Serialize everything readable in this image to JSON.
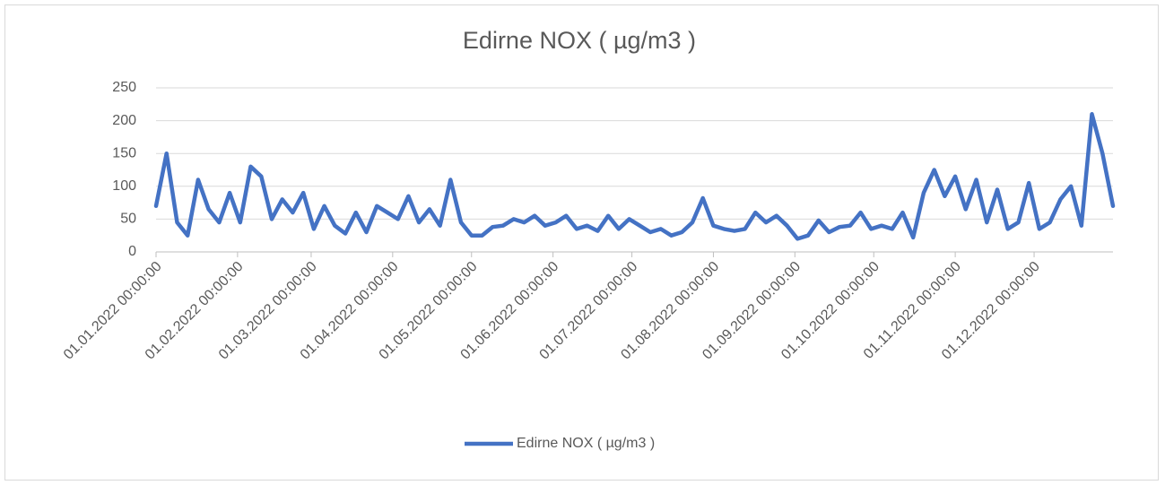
{
  "chart_data": {
    "type": "line",
    "title": "Edirne NOX ( µg/m3 )",
    "x": [
      "2022-01-01",
      "2022-01-05",
      "2022-01-09",
      "2022-01-13",
      "2022-01-17",
      "2022-01-21",
      "2022-01-25",
      "2022-01-29",
      "2022-02-02",
      "2022-02-06",
      "2022-02-10",
      "2022-02-14",
      "2022-02-18",
      "2022-02-22",
      "2022-02-26",
      "2022-03-02",
      "2022-03-06",
      "2022-03-10",
      "2022-03-14",
      "2022-03-18",
      "2022-03-22",
      "2022-03-26",
      "2022-03-30",
      "2022-04-03",
      "2022-04-07",
      "2022-04-11",
      "2022-04-15",
      "2022-04-19",
      "2022-04-23",
      "2022-04-27",
      "2022-05-01",
      "2022-05-05",
      "2022-05-09",
      "2022-05-13",
      "2022-05-17",
      "2022-05-21",
      "2022-05-25",
      "2022-05-29",
      "2022-06-02",
      "2022-06-06",
      "2022-06-10",
      "2022-06-14",
      "2022-06-18",
      "2022-06-22",
      "2022-06-26",
      "2022-06-30",
      "2022-07-04",
      "2022-07-08",
      "2022-07-12",
      "2022-07-16",
      "2022-07-20",
      "2022-07-24",
      "2022-07-28",
      "2022-08-01",
      "2022-08-05",
      "2022-08-09",
      "2022-08-13",
      "2022-08-17",
      "2022-08-21",
      "2022-08-25",
      "2022-08-29",
      "2022-09-02",
      "2022-09-06",
      "2022-09-10",
      "2022-09-14",
      "2022-09-18",
      "2022-09-22",
      "2022-09-26",
      "2022-09-30",
      "2022-10-04",
      "2022-10-08",
      "2022-10-12",
      "2022-10-16",
      "2022-10-20",
      "2022-10-24",
      "2022-10-28",
      "2022-11-01",
      "2022-11-05",
      "2022-11-09",
      "2022-11-13",
      "2022-11-17",
      "2022-11-21",
      "2022-11-25",
      "2022-11-29",
      "2022-12-03",
      "2022-12-07",
      "2022-12-11",
      "2022-12-15",
      "2022-12-19",
      "2022-12-23",
      "2022-12-27",
      "2022-12-31"
    ],
    "series": [
      {
        "name": "Edirne NOX ( µg/m3 )",
        "color": "#4472c4",
        "values": [
          70,
          150,
          45,
          25,
          110,
          65,
          45,
          90,
          45,
          130,
          115,
          50,
          80,
          60,
          90,
          35,
          70,
          40,
          28,
          60,
          30,
          70,
          60,
          50,
          85,
          45,
          65,
          40,
          110,
          45,
          25,
          25,
          38,
          40,
          50,
          45,
          55,
          40,
          45,
          55,
          35,
          40,
          32,
          55,
          35,
          50,
          40,
          30,
          35,
          25,
          30,
          45,
          82,
          40,
          35,
          32,
          35,
          60,
          45,
          55,
          40,
          20,
          25,
          48,
          30,
          38,
          40,
          60,
          35,
          40,
          35,
          60,
          22,
          90,
          125,
          85,
          115,
          65,
          110,
          45,
          95,
          35,
          45,
          105,
          35,
          45,
          80,
          100,
          40,
          210,
          150,
          70
        ]
      }
    ],
    "xlim": [
      "2022-01-01",
      "2022-12-31"
    ],
    "xticks": [
      {
        "value": "2022-01-01",
        "label": "01.01.2022 00:00:00"
      },
      {
        "value": "2022-02-01",
        "label": "01.02.2022 00:00:00"
      },
      {
        "value": "2022-03-01",
        "label": "01.03.2022 00:00:00"
      },
      {
        "value": "2022-04-01",
        "label": "01.04.2022 00:00:00"
      },
      {
        "value": "2022-05-01",
        "label": "01.05.2022 00:00:00"
      },
      {
        "value": "2022-06-01",
        "label": "01.06.2022 00:00:00"
      },
      {
        "value": "2022-07-01",
        "label": "01.07.2022 00:00:00"
      },
      {
        "value": "2022-08-01",
        "label": "01.08.2022 00:00:00"
      },
      {
        "value": "2022-09-01",
        "label": "01.09.2022 00:00:00"
      },
      {
        "value": "2022-10-01",
        "label": "01.10.2022 00:00:00"
      },
      {
        "value": "2022-11-01",
        "label": "01.11.2022 00:00:00"
      },
      {
        "value": "2022-12-01",
        "label": "01.12.2022 00:00:00"
      }
    ],
    "ylim": [
      0,
      250
    ],
    "yticks": [
      0,
      50,
      100,
      150,
      200,
      250
    ],
    "grid": true,
    "legend": "bottom"
  }
}
